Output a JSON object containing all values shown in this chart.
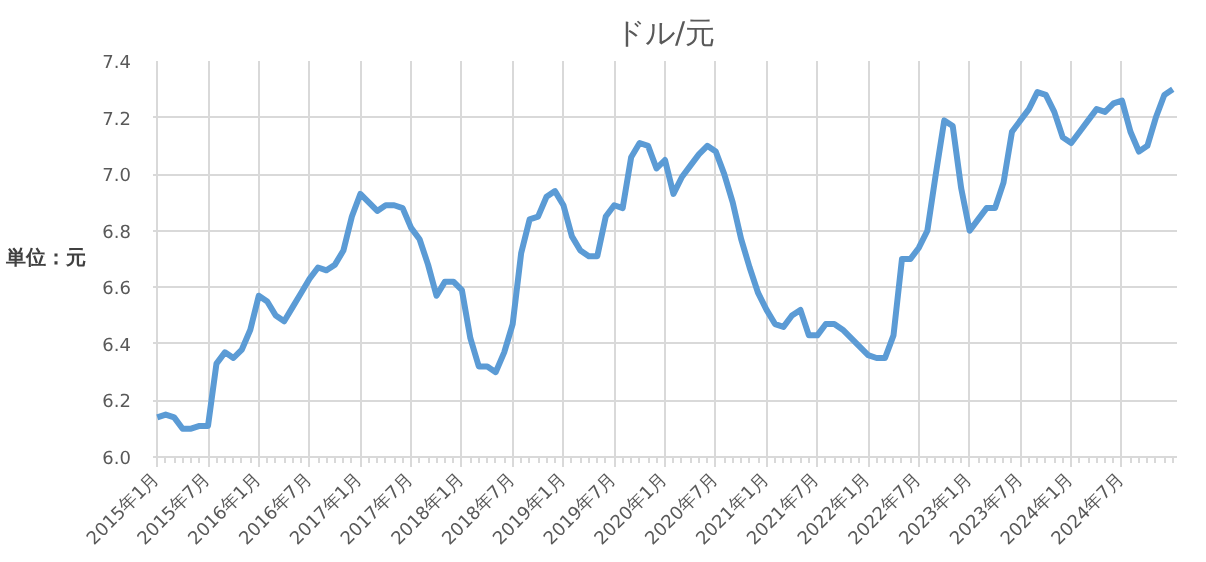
{
  "chart_data": {
    "type": "line",
    "title": "ドル/元",
    "ylabel": "単位：元",
    "categories": [
      "2015年1月",
      null,
      null,
      null,
      null,
      null,
      "2015年7月",
      null,
      null,
      null,
      null,
      null,
      "2016年1月",
      null,
      null,
      null,
      null,
      null,
      "2016年7月",
      null,
      null,
      null,
      null,
      null,
      "2017年1月",
      null,
      null,
      null,
      null,
      null,
      "2017年7月",
      null,
      null,
      null,
      null,
      null,
      "2018年1月",
      null,
      null,
      null,
      null,
      null,
      "2018年7月",
      null,
      null,
      null,
      null,
      null,
      "2019年1月",
      null,
      null,
      null,
      null,
      null,
      "2019年7月",
      null,
      null,
      null,
      null,
      null,
      "2020年1月",
      null,
      null,
      null,
      null,
      null,
      "2020年7月",
      null,
      null,
      null,
      null,
      null,
      "2021年1月",
      null,
      null,
      null,
      null,
      null,
      "2021年7月",
      null,
      null,
      null,
      null,
      null,
      "2022年1月",
      null,
      null,
      null,
      null,
      null,
      "2022年7月",
      null,
      null,
      null,
      null,
      null,
      "2023年1月",
      null,
      null,
      null,
      null,
      null,
      "2023年7月",
      null,
      null,
      null,
      null,
      null,
      "2024年1月",
      null,
      null,
      null,
      null,
      null,
      "2024年7月",
      null,
      null,
      null,
      null,
      null,
      null
    ],
    "series": [
      {
        "color": "#5b9bd5",
        "values": [
          6.14,
          6.15,
          6.14,
          6.1,
          6.1,
          6.11,
          6.11,
          6.33,
          6.37,
          6.35,
          6.38,
          6.45,
          6.57,
          6.55,
          6.5,
          6.48,
          6.53,
          6.58,
          6.63,
          6.67,
          6.66,
          6.68,
          6.73,
          6.85,
          6.93,
          6.9,
          6.87,
          6.89,
          6.89,
          6.88,
          6.81,
          6.77,
          6.68,
          6.57,
          6.62,
          6.62,
          6.59,
          6.42,
          6.32,
          6.32,
          6.3,
          6.37,
          6.47,
          6.72,
          6.84,
          6.85,
          6.92,
          6.94,
          6.89,
          6.78,
          6.73,
          6.71,
          6.71,
          6.85,
          6.89,
          6.88,
          7.06,
          7.11,
          7.1,
          7.02,
          7.05,
          6.93,
          6.99,
          7.03,
          7.07,
          7.1,
          7.08,
          7.0,
          6.9,
          6.77,
          6.67,
          6.58,
          6.52,
          6.47,
          6.46,
          6.5,
          6.52,
          6.43,
          6.43,
          6.47,
          6.47,
          6.45,
          6.42,
          6.39,
          6.36,
          6.35,
          6.35,
          6.43,
          6.7,
          6.7,
          6.74,
          6.8,
          7.0,
          7.19,
          7.17,
          6.95,
          6.8,
          6.84,
          6.88,
          6.88,
          6.97,
          7.15,
          7.19,
          7.23,
          7.29,
          7.28,
          7.22,
          7.13,
          7.11,
          7.15,
          7.19,
          7.23,
          7.22,
          7.25,
          7.26,
          7.15,
          7.08,
          7.1,
          7.2,
          7.28,
          7.3
        ]
      }
    ],
    "ylim": [
      6.0,
      7.4
    ],
    "yticks": [
      {
        "value": 6.0,
        "label": "6.0"
      },
      {
        "value": 6.2,
        "label": "6.2"
      },
      {
        "value": 6.4,
        "label": "6.4"
      },
      {
        "value": 6.6,
        "label": "6.6"
      },
      {
        "value": 6.8,
        "label": "6.8"
      },
      {
        "value": 7.0,
        "label": "7.0"
      },
      {
        "value": 7.2,
        "label": "7.2"
      },
      {
        "value": 7.4,
        "label": "7.4"
      }
    ],
    "grid": true,
    "marker": "none",
    "line_style": "solid"
  }
}
